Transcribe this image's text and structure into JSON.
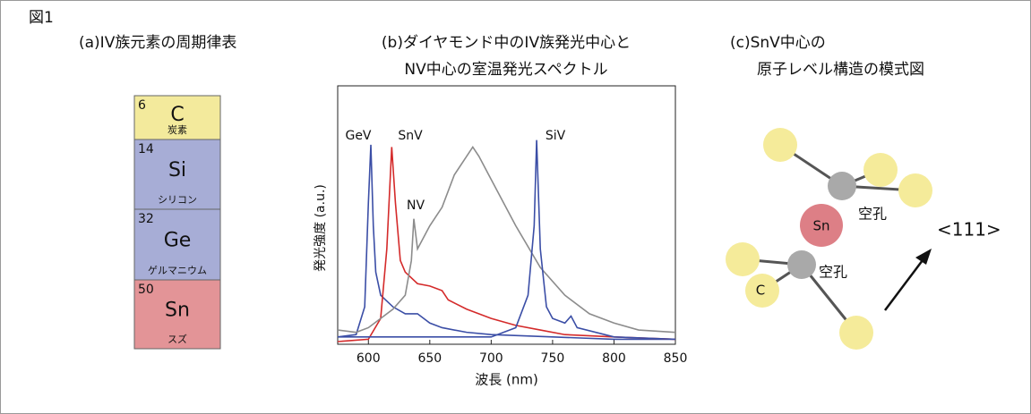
{
  "figure_label": "図1",
  "panel_a": {
    "title": "(a)IV族元素の周期律表",
    "elements": [
      {
        "number": 6,
        "symbol": "C",
        "name": "炭素",
        "color": "#f3ea9c"
      },
      {
        "number": 14,
        "symbol": "Si",
        "name": "シリコン",
        "color": "#a7add6"
      },
      {
        "number": 32,
        "symbol": "Ge",
        "name": "ゲルマニウム",
        "color": "#a7add6"
      },
      {
        "number": 50,
        "symbol": "Sn",
        "name": "スズ",
        "color": "#e39497"
      }
    ]
  },
  "chart_data": {
    "type": "line",
    "title": [
      "(b)ダイヤモンド中のIV族発光中心と",
      "NV中心の室温発光スペクトル"
    ],
    "x_label": "波長 (nm)",
    "y_label": "発光強度 (a.u.)",
    "xlim": [
      575,
      850
    ],
    "xticks": [
      600,
      650,
      700,
      750,
      800,
      850
    ],
    "ylim": [
      0,
      1
    ],
    "series": [
      {
        "name": "GeV",
        "color": "#3b4ea6",
        "x": [
          575,
          590,
          597,
          600,
          602,
          604,
          606,
          610,
          620,
          630,
          640,
          650,
          660,
          680,
          700,
          750,
          800,
          850
        ],
        "values": [
          0.02,
          0.03,
          0.15,
          0.6,
          0.85,
          0.5,
          0.3,
          0.2,
          0.15,
          0.12,
          0.12,
          0.08,
          0.06,
          0.04,
          0.03,
          0.02,
          0.01,
          0.01
        ]
      },
      {
        "name": "SnV",
        "color": "#d42a2a",
        "x": [
          575,
          600,
          610,
          615,
          619,
          622,
          626,
          630,
          640,
          650,
          660,
          665,
          680,
          700,
          720,
          740,
          760,
          800,
          850
        ],
        "values": [
          0.0,
          0.01,
          0.1,
          0.4,
          0.84,
          0.6,
          0.35,
          0.3,
          0.25,
          0.24,
          0.22,
          0.18,
          0.14,
          0.1,
          0.07,
          0.05,
          0.03,
          0.02,
          0.01
        ]
      },
      {
        "name": "NV",
        "color": "#8c8c8c",
        "x": [
          575,
          590,
          600,
          610,
          620,
          630,
          635,
          637,
          640,
          650,
          660,
          670,
          680,
          685,
          690,
          700,
          720,
          740,
          760,
          780,
          800,
          820,
          850
        ],
        "values": [
          0.05,
          0.04,
          0.06,
          0.1,
          0.14,
          0.2,
          0.35,
          0.53,
          0.4,
          0.5,
          0.58,
          0.72,
          0.8,
          0.84,
          0.8,
          0.7,
          0.5,
          0.32,
          0.2,
          0.12,
          0.08,
          0.05,
          0.04
        ]
      },
      {
        "name": "SiV",
        "color": "#3b4ea6",
        "x": [
          575,
          700,
          720,
          730,
          735,
          737,
          740,
          745,
          750,
          760,
          765,
          770,
          800,
          850
        ],
        "values": [
          0.02,
          0.02,
          0.06,
          0.2,
          0.5,
          0.87,
          0.4,
          0.15,
          0.1,
          0.08,
          0.11,
          0.06,
          0.02,
          0.01
        ]
      }
    ]
  },
  "panel_c": {
    "title": [
      "(c)SnV中心の",
      "原子レベル構造の模式図"
    ],
    "sn_label": "Sn",
    "c_label": "C",
    "vacancy_labels": [
      "空孔",
      "空孔"
    ],
    "direction": "<111>"
  }
}
